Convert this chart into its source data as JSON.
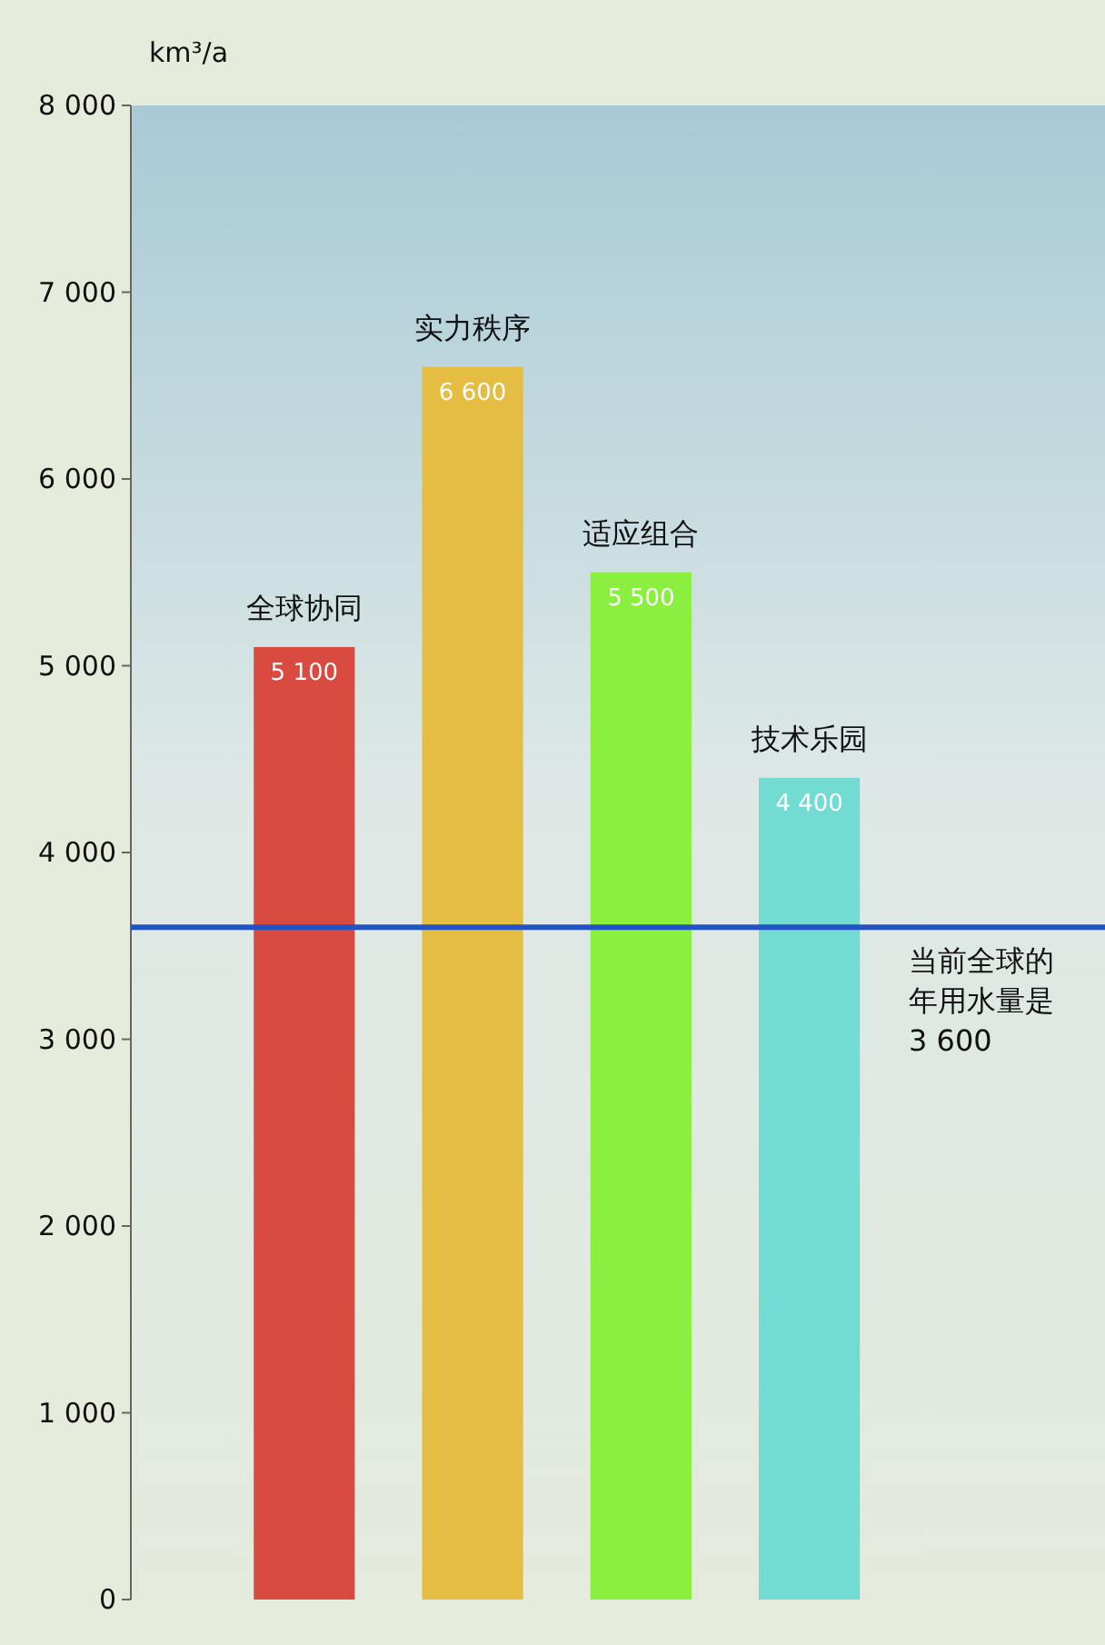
{
  "chart_data": {
    "type": "bar",
    "ylabel": "km³/a",
    "categories": [
      "全球协同",
      "实力秩序",
      "适应组合",
      "技术乐园"
    ],
    "values": [
      5100,
      6600,
      5500,
      4400
    ],
    "colors": [
      "#d94a40",
      "#e4bd42",
      "#8aef3e",
      "#72dcd2"
    ],
    "value_labels": [
      "5 100",
      "6 600",
      "5 500",
      "4 400"
    ],
    "ylim": [
      0,
      8000
    ],
    "yticks": [
      {
        "value": 0,
        "label": "0"
      },
      {
        "value": 1000,
        "label": "1 000"
      },
      {
        "value": 2000,
        "label": "2 000"
      },
      {
        "value": 3000,
        "label": "3 000"
      },
      {
        "value": 4000,
        "label": "4 000"
      },
      {
        "value": 5000,
        "label": "5 000"
      },
      {
        "value": 6000,
        "label": "6 000"
      },
      {
        "value": 7000,
        "label": "7 000"
      },
      {
        "value": 8000,
        "label": "8 000"
      }
    ],
    "ref_lines": [
      {
        "axis": "y",
        "value": 3600,
        "label": "当前全球的年用水量是 3 600",
        "color": "#2352c4"
      }
    ]
  }
}
